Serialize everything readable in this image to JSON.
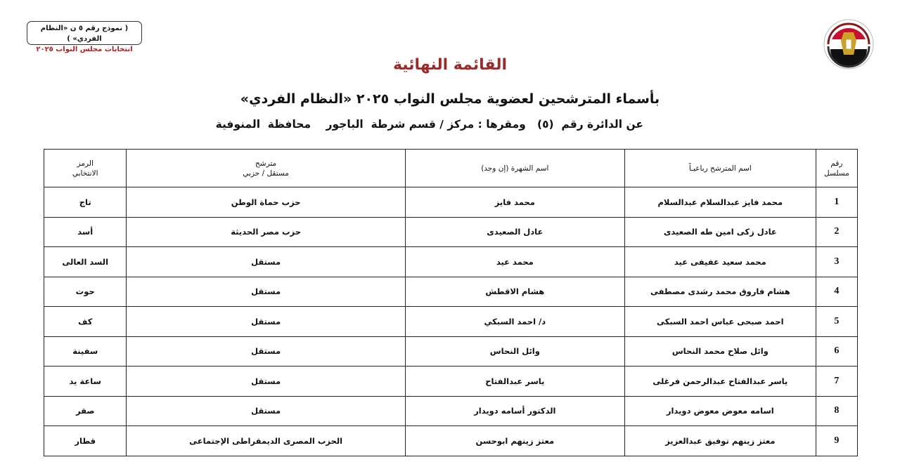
{
  "form_box": {
    "line1": "( نموذج رقم ٥ ن «النظام الفردي» )",
    "line2": "انتخابات مجلس النواب ٢٠٢٥"
  },
  "logo": {
    "arabic": "الهيئة الوطنية للانتخابات",
    "english": "National Election Authority - Egypt"
  },
  "colors": {
    "title": "#9b2a2a",
    "form_subtitle": "#b02020"
  },
  "header": {
    "title": "القائمة النهائية",
    "subtitle": "بأسماء المترشحين لعضوية مجلس النواب ٢٠٢٥ «النظام الفردي»",
    "district": "عن الدائرة رقم  (٥)   ومقرها : مركز / قسم شرطة  الباجور    محافظة  المنوفية"
  },
  "table": {
    "columns": {
      "number": [
        "رقم",
        "مسلسل"
      ],
      "name": "اسم المترشح رباعيـاً",
      "nickname": "اسم الشهرة (إن وجد)",
      "party": [
        "مترشح",
        "مستقل / حزبي"
      ],
      "symbol": [
        "الرمز",
        "الانتخابي"
      ]
    },
    "rows": [
      {
        "number": "1",
        "name": "محمد فايز عبدالسلام عبدالسلام",
        "nickname": "محمد فايز",
        "party": "حزب حماة الوطن",
        "symbol": "تاج"
      },
      {
        "number": "2",
        "name": "عادل زكى امين طه الصعيدى",
        "nickname": "عادل الصعيدى",
        "party": "حزب مصر الحديثة",
        "symbol": "أسد"
      },
      {
        "number": "3",
        "name": "محمد سعيد عفيفى عيد",
        "nickname": "محمد عيد",
        "party": "مستقل",
        "symbol": "السد العالى"
      },
      {
        "number": "4",
        "name": "هشام فاروق محمد رشدى مصطفى",
        "nickname": "هشام الاقطش",
        "party": "مستقل",
        "symbol": "حوت"
      },
      {
        "number": "5",
        "name": "احمد صبحى عباس احمد السبكى",
        "nickname": "د/ احمد السبكي",
        "party": "مستقل",
        "symbol": "كف"
      },
      {
        "number": "6",
        "name": "وائل صلاح محمد النحاس",
        "nickname": "وائل النحاس",
        "party": "مستقل",
        "symbol": "سفينة"
      },
      {
        "number": "7",
        "name": "ياسر عبدالفتاح عبدالرحمن فرغلى",
        "nickname": "ياسر عبدالفتاح",
        "party": "مستقل",
        "symbol": "ساعة يد"
      },
      {
        "number": "8",
        "name": "اسامه معوض معوض دويدار",
        "nickname": "الدكتور أسامه دويدار",
        "party": "مستقل",
        "symbol": "صقر"
      },
      {
        "number": "9",
        "name": "معتز زينهم توفيق عبدالعزيز",
        "nickname": "معتز زينهم ابوحسن",
        "party": "الحزب المصرى الديمقراطى الإجتماعى",
        "symbol": "قطار"
      }
    ]
  }
}
